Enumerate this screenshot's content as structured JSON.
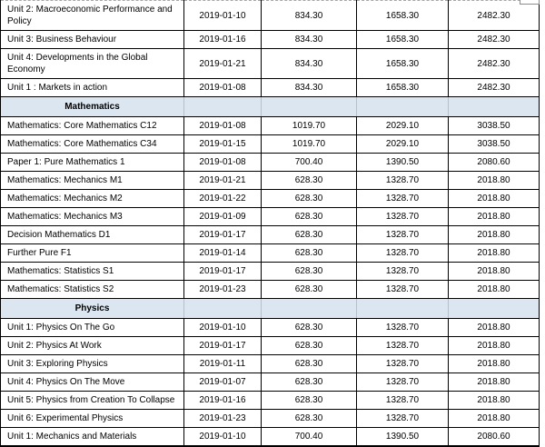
{
  "colors": {
    "section_bg": "#dce6f1",
    "section_divider": "#b4c0cc",
    "grid_border": "#000000",
    "clipped_gridline": "#a6a6a6"
  },
  "table": {
    "column_kinds": [
      "exam-name",
      "exam-date",
      "fee-1",
      "fee-2",
      "fee-3"
    ],
    "rows": [
      {
        "type": "item",
        "name": "Unit 2: Macroeconomic Performance and Policy",
        "date": "2019-01-10",
        "values": [
          "834.30",
          "1658.30",
          "2482.30"
        ]
      },
      {
        "type": "item",
        "name": "Unit 3: Business Behaviour",
        "date": "2019-01-16",
        "values": [
          "834.30",
          "1658.30",
          "2482.30"
        ]
      },
      {
        "type": "item",
        "name": "Unit 4: Developments in the Global Economy",
        "date": "2019-01-21",
        "values": [
          "834.30",
          "1658.30",
          "2482.30"
        ]
      },
      {
        "type": "item",
        "name": "Unit 1 : Markets in action",
        "date": "2019-01-08",
        "values": [
          "834.30",
          "1658.30",
          "2482.30"
        ]
      },
      {
        "type": "section",
        "label": "Mathematics"
      },
      {
        "type": "item",
        "name": "Mathematics: Core Mathematics C12",
        "date": "2019-01-08",
        "values": [
          "1019.70",
          "2029.10",
          "3038.50"
        ]
      },
      {
        "type": "item",
        "name": "Mathematics: Core Mathematics C34",
        "date": "2019-01-15",
        "values": [
          "1019.70",
          "2029.10",
          "3038.50"
        ]
      },
      {
        "type": "item",
        "name": "Paper 1: Pure Mathematics 1",
        "date": "2019-01-08",
        "values": [
          "700.40",
          "1390.50",
          "2080.60"
        ]
      },
      {
        "type": "item",
        "name": "Mathematics: Mechanics M1",
        "date": "2019-01-21",
        "values": [
          "628.30",
          "1328.70",
          "2018.80"
        ]
      },
      {
        "type": "item",
        "name": "Mathematics: Mechanics M2",
        "date": "2019-01-22",
        "values": [
          "628.30",
          "1328.70",
          "2018.80"
        ]
      },
      {
        "type": "item",
        "name": "Mathematics: Mechanics M3",
        "date": "2019-01-09",
        "values": [
          "628.30",
          "1328.70",
          "2018.80"
        ]
      },
      {
        "type": "item",
        "name": "Decision Mathematics D1",
        "date": "2019-01-17",
        "values": [
          "628.30",
          "1328.70",
          "2018.80"
        ]
      },
      {
        "type": "item",
        "name": "Further Pure F1",
        "date": "2019-01-14",
        "values": [
          "628.30",
          "1328.70",
          "2018.80"
        ]
      },
      {
        "type": "item",
        "name": "Mathematics: Statistics S1",
        "date": "2019-01-17",
        "values": [
          "628.30",
          "1328.70",
          "2018.80"
        ]
      },
      {
        "type": "item",
        "name": "Mathematics: Statistics S2",
        "date": "2019-01-23",
        "values": [
          "628.30",
          "1328.70",
          "2018.80"
        ]
      },
      {
        "type": "section",
        "label": "Physics"
      },
      {
        "type": "item",
        "name": "Unit 1: Physics On The Go",
        "date": "2019-01-10",
        "values": [
          "628.30",
          "1328.70",
          "2018.80"
        ]
      },
      {
        "type": "item",
        "name": "Unit 2: Physics At Work",
        "date": "2019-01-17",
        "values": [
          "628.30",
          "1328.70",
          "2018.80"
        ]
      },
      {
        "type": "item",
        "name": "Unit 3: Exploring Physics",
        "date": "2019-01-11",
        "values": [
          "628.30",
          "1328.70",
          "2018.80"
        ]
      },
      {
        "type": "item",
        "name": "Unit 4: Physics On The Move",
        "date": "2019-01-07",
        "values": [
          "628.30",
          "1328.70",
          "2018.80"
        ]
      },
      {
        "type": "item",
        "name": "Unit 5: Physics from Creation To Collapse",
        "date": "2019-01-16",
        "values": [
          "628.30",
          "1328.70",
          "2018.80"
        ]
      },
      {
        "type": "item",
        "name": "Unit 6: Experimental Physics",
        "date": "2019-01-23",
        "values": [
          "628.30",
          "1328.70",
          "2018.80"
        ]
      },
      {
        "type": "item",
        "name": "Unit 1: Mechanics and Materials",
        "date": "2019-01-10",
        "values": [
          "700.40",
          "1390.50",
          "2080.60"
        ]
      }
    ]
  }
}
